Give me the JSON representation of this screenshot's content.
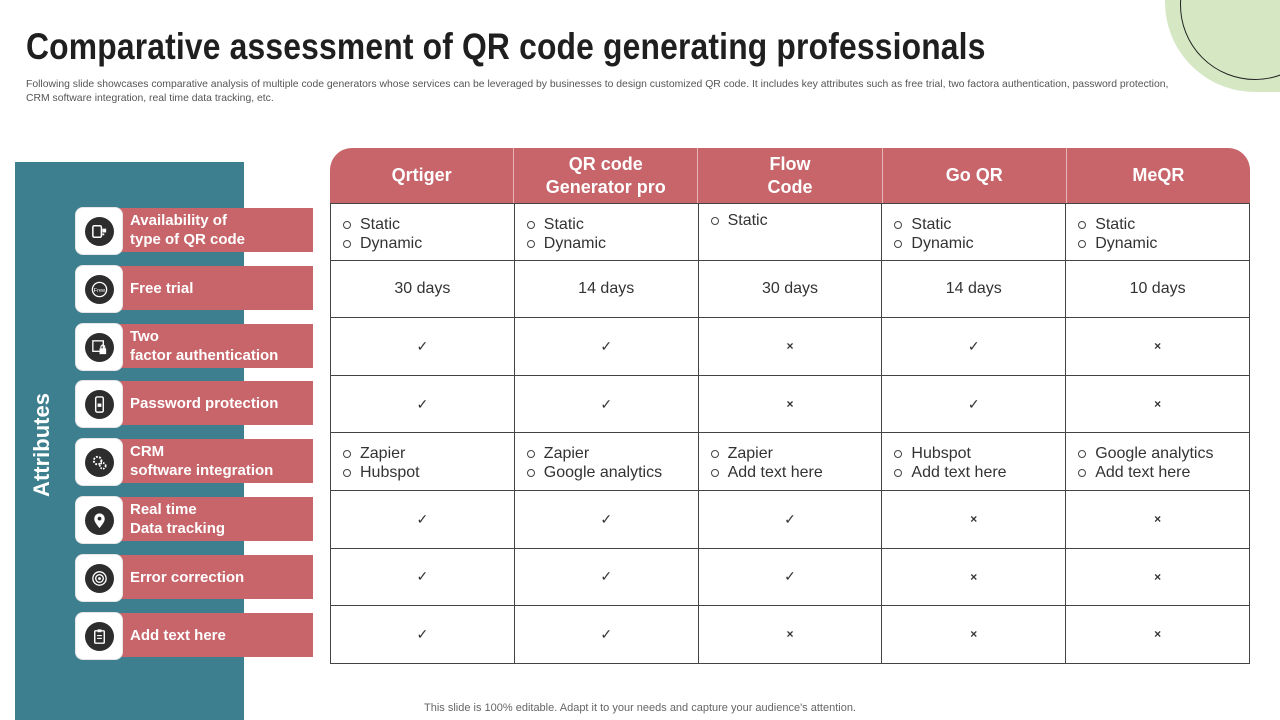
{
  "slide": {
    "title": "Comparative assessment of QR code generating professionals",
    "subtitle": "Following slide showcases comparative analysis of multiple code generators whose services can be leveraged by businesses to design customized QR code. It includes key attributes such as  free trial, two factora authentication, password protection, CRM software integration, real time data tracking, etc.",
    "side_label": "Attributes",
    "footer": "This slide is 100% editable. Adapt it to your needs and capture your audience's attention."
  },
  "attributes": [
    {
      "label": "Availability  of\ntype of QR code",
      "icon": "qr-device-icon"
    },
    {
      "label": "Free trial",
      "icon": "free-trial-badge-icon"
    },
    {
      "label": "Two\nfactor authentication",
      "icon": "lock-screen-icon"
    },
    {
      "label": "Password protection",
      "icon": "phone-lock-icon"
    },
    {
      "label": "CRM\nsoftware integration",
      "icon": "gears-icon"
    },
    {
      "label": "Real time\nData tracking",
      "icon": "location-pin-icon"
    },
    {
      "label": "Error correction",
      "icon": "target-icon"
    },
    {
      "label": "Add text here",
      "icon": "clipboard-icon"
    }
  ],
  "columns": [
    "Qrtiger",
    "QR code\nGenerator pro",
    "Flow\nCode",
    "Go QR",
    "MeQR"
  ],
  "rows": [
    [
      [
        "Static",
        "Dynamic"
      ],
      [
        "Static",
        "Dynamic"
      ],
      [
        "Static"
      ],
      [
        "Static",
        "Dynamic"
      ],
      [
        "Static",
        "Dynamic"
      ]
    ],
    [
      "30 days",
      "14 days",
      "30 days",
      "14 days",
      "10 days"
    ],
    [
      "✓",
      "✓",
      "×",
      "✓",
      "×"
    ],
    [
      "✓",
      "✓",
      "×",
      "✓",
      "×"
    ],
    [
      [
        "Zapier",
        "Hubspot"
      ],
      [
        "Zapier",
        "Google analytics"
      ],
      [
        "Zapier",
        "Add text here"
      ],
      [
        "Hubspot",
        "Add text here"
      ],
      [
        "Google analytics",
        "Add text here"
      ]
    ],
    [
      "✓",
      "✓",
      "✓",
      "×",
      "×"
    ],
    [
      "✓",
      "✓",
      "✓",
      "×",
      "×"
    ],
    [
      "✓",
      "✓",
      "×",
      "×",
      "×"
    ]
  ]
}
